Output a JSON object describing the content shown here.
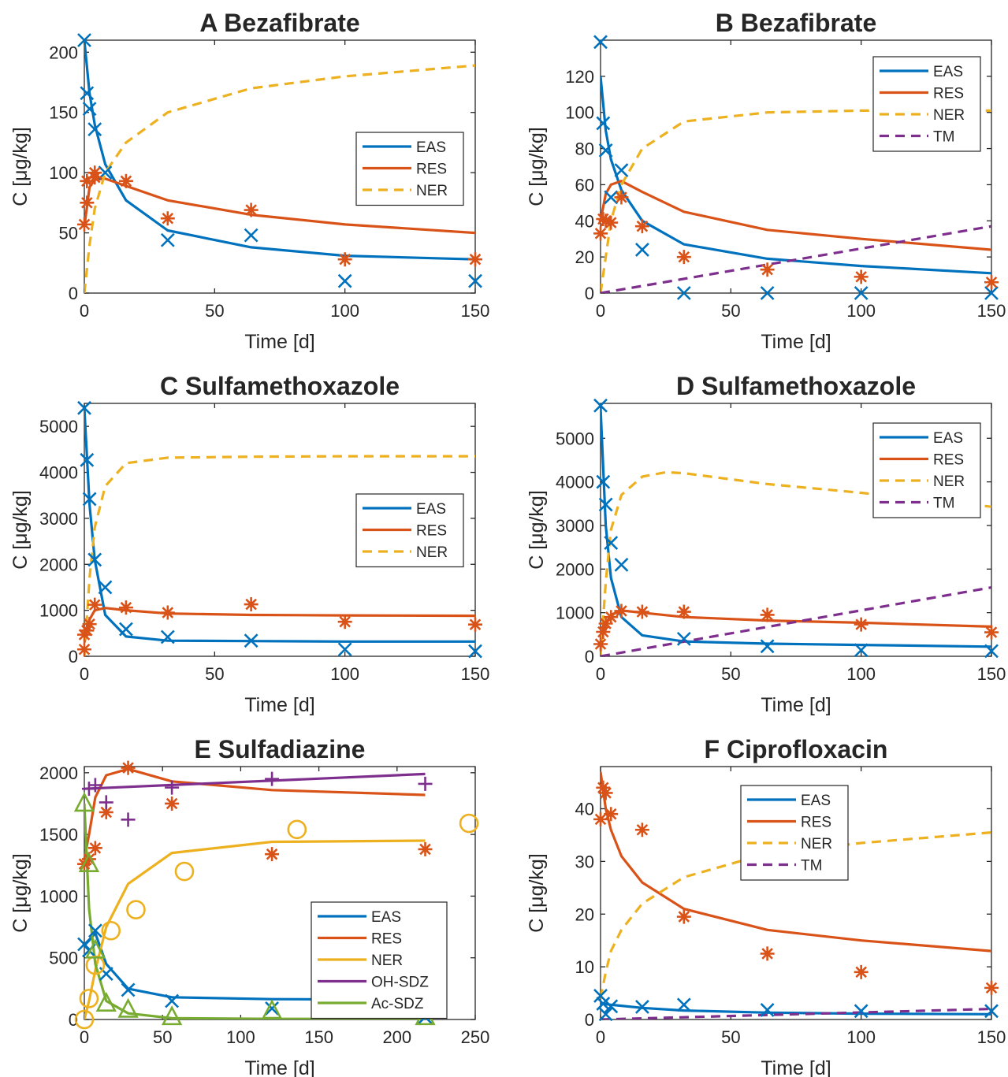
{
  "colors": {
    "EAS": "#0072BD",
    "RES": "#D95319",
    "NER": "#EDB120",
    "TM": "#7E2F8E",
    "OH-SDZ": "#7E2F8E",
    "Ac-SDZ": "#77AC30"
  },
  "chart_data": [
    {
      "type": "line",
      "title": "A Bezafibrate",
      "xlabel": "Time [d]",
      "ylabel": "C [μg/kg]",
      "xlim": [
        0,
        150
      ],
      "ylim": [
        0,
        210
      ],
      "xticks": [
        0,
        50,
        100,
        150
      ],
      "yticks": [
        0,
        50,
        100,
        150,
        200
      ],
      "grid": false,
      "legend_position": "right-middle",
      "series": [
        {
          "name": "EAS",
          "style": "solid",
          "x": [
            0,
            2,
            4,
            8,
            16,
            32,
            64,
            100,
            150
          ],
          "y": [
            210,
            166,
            140,
            107,
            77,
            52,
            38,
            31,
            28
          ]
        },
        {
          "name": "RES",
          "style": "solid",
          "x": [
            0,
            2,
            4,
            8,
            16,
            32,
            64,
            100,
            150
          ],
          "y": [
            55,
            88,
            94,
            95,
            89,
            77,
            65,
            57,
            50
          ]
        },
        {
          "name": "NER",
          "style": "dashed",
          "x": [
            0,
            2,
            4,
            8,
            16,
            32,
            64,
            100,
            150
          ],
          "y": [
            0,
            40,
            70,
            100,
            125,
            150,
            170,
            180,
            189
          ]
        }
      ],
      "markers": [
        {
          "series": "EAS",
          "marker": "x",
          "x": [
            0,
            1,
            2,
            4,
            8,
            32,
            64,
            100,
            150
          ],
          "y": [
            210,
            166,
            153,
            136,
            100,
            44,
            48,
            10,
            10
          ]
        },
        {
          "series": "RES",
          "marker": "*",
          "x": [
            0,
            1,
            1,
            4,
            4,
            16,
            32,
            64,
            100,
            150
          ],
          "y": [
            57,
            75,
            93,
            96,
            100,
            93,
            62,
            69,
            28,
            28
          ]
        }
      ]
    },
    {
      "type": "line",
      "title": "B Bezafibrate",
      "xlabel": "Time [d]",
      "ylabel": "C [μg/kg]",
      "xlim": [
        0,
        150
      ],
      "ylim": [
        0,
        140
      ],
      "xticks": [
        0,
        50,
        100,
        150
      ],
      "yticks": [
        0,
        20,
        40,
        60,
        80,
        100,
        120
      ],
      "grid": false,
      "legend_position": "top-right",
      "series": [
        {
          "name": "EAS",
          "style": "solid",
          "x": [
            0,
            2,
            4,
            8,
            16,
            32,
            64,
            100,
            150
          ],
          "y": [
            120,
            90,
            74,
            57,
            40,
            27,
            19,
            15,
            11
          ]
        },
        {
          "name": "RES",
          "style": "solid",
          "x": [
            0,
            2,
            4,
            8,
            16,
            32,
            64,
            100,
            150
          ],
          "y": [
            40,
            55,
            60,
            62,
            56,
            45,
            35,
            30,
            24
          ]
        },
        {
          "name": "NER",
          "style": "dashed",
          "x": [
            0,
            2,
            4,
            8,
            16,
            32,
            64,
            100,
            150
          ],
          "y": [
            0,
            20,
            40,
            60,
            80,
            95,
            100,
            101,
            101
          ]
        },
        {
          "name": "TM",
          "style": "dashed",
          "x": [
            0,
            150
          ],
          "y": [
            0,
            37
          ]
        }
      ],
      "markers": [
        {
          "series": "EAS",
          "marker": "x",
          "x": [
            0,
            1,
            2,
            4,
            8,
            16,
            32,
            64,
            100,
            150
          ],
          "y": [
            139,
            94,
            79,
            53,
            68,
            24,
            0,
            0,
            0,
            0
          ]
        },
        {
          "series": "RES",
          "marker": "*",
          "x": [
            0,
            1,
            2,
            4,
            8,
            16,
            32,
            64,
            100,
            150
          ],
          "y": [
            33,
            41,
            40,
            39,
            53,
            37,
            20,
            13,
            9,
            6
          ]
        }
      ]
    },
    {
      "type": "line",
      "title": "C Sulfamethoxazole",
      "xlabel": "Time [d]",
      "ylabel": "C [μg/kg]",
      "xlim": [
        0,
        150
      ],
      "ylim": [
        0,
        5500
      ],
      "xticks": [
        0,
        50,
        100,
        150
      ],
      "yticks": [
        0,
        1000,
        2000,
        3000,
        4000,
        5000
      ],
      "grid": false,
      "legend_position": "right-middle",
      "series": [
        {
          "name": "EAS",
          "style": "solid",
          "x": [
            0,
            2,
            4,
            8,
            16,
            32,
            64,
            100,
            150
          ],
          "y": [
            5400,
            3300,
            2100,
            900,
            430,
            340,
            330,
            320,
            320
          ]
        },
        {
          "name": "RES",
          "style": "solid",
          "x": [
            0,
            2,
            4,
            8,
            16,
            32,
            64,
            100,
            150
          ],
          "y": [
            300,
            800,
            1000,
            1050,
            1000,
            930,
            900,
            890,
            880
          ]
        },
        {
          "name": "NER",
          "style": "dashed",
          "x": [
            0,
            2,
            4,
            8,
            16,
            32,
            64,
            100,
            150
          ],
          "y": [
            0,
            1700,
            2800,
            3700,
            4200,
            4320,
            4340,
            4350,
            4350
          ]
        }
      ],
      "markers": [
        {
          "series": "EAS",
          "marker": "x",
          "x": [
            0,
            1,
            2,
            4,
            8,
            16,
            32,
            64,
            100,
            150
          ],
          "y": [
            5400,
            4270,
            3420,
            2100,
            1500,
            590,
            420,
            340,
            150,
            110
          ]
        },
        {
          "series": "RES",
          "marker": "*",
          "x": [
            0,
            0,
            1,
            2,
            4,
            16,
            32,
            64,
            100,
            150
          ],
          "y": [
            150,
            470,
            560,
            700,
            1120,
            1060,
            950,
            1130,
            750,
            690
          ]
        }
      ]
    },
    {
      "type": "line",
      "title": "D Sulfamethoxazole",
      "xlabel": "Time [d]",
      "ylabel": "C [μg/kg]",
      "xlim": [
        0,
        150
      ],
      "ylim": [
        0,
        5800
      ],
      "xticks": [
        0,
        50,
        100,
        150
      ],
      "yticks": [
        0,
        1000,
        2000,
        3000,
        4000,
        5000
      ],
      "grid": false,
      "legend_position": "top-right",
      "series": [
        {
          "name": "EAS",
          "style": "solid",
          "x": [
            0,
            2,
            4,
            8,
            16,
            32,
            64,
            100,
            150
          ],
          "y": [
            5700,
            3000,
            1800,
            900,
            480,
            340,
            290,
            260,
            220
          ]
        },
        {
          "name": "RES",
          "style": "solid",
          "x": [
            0,
            2,
            4,
            8,
            16,
            32,
            64,
            100,
            150
          ],
          "y": [
            300,
            750,
            950,
            1050,
            1000,
            900,
            820,
            770,
            680
          ]
        },
        {
          "name": "NER",
          "style": "dashed",
          "x": [
            0,
            2,
            4,
            8,
            16,
            25,
            32,
            64,
            100,
            150
          ],
          "y": [
            0,
            1700,
            2900,
            3700,
            4120,
            4220,
            4200,
            3950,
            3750,
            3430
          ]
        },
        {
          "name": "TM",
          "style": "dashed",
          "x": [
            0,
            150
          ],
          "y": [
            0,
            1580
          ]
        }
      ],
      "markers": [
        {
          "series": "EAS",
          "marker": "x",
          "x": [
            0,
            1,
            2,
            4,
            8,
            32,
            64,
            100,
            150
          ],
          "y": [
            5750,
            4000,
            3480,
            2600,
            2100,
            400,
            230,
            140,
            120
          ]
        },
        {
          "series": "RES",
          "marker": "*",
          "x": [
            0,
            1,
            2,
            4,
            8,
            16,
            32,
            64,
            100,
            150
          ],
          "y": [
            280,
            560,
            750,
            900,
            1040,
            1020,
            1020,
            950,
            730,
            550
          ]
        }
      ]
    },
    {
      "type": "line",
      "title": "E Sulfadiazine",
      "xlabel": "Time [d]",
      "ylabel": "C [μg/kg]",
      "xlim": [
        0,
        250
      ],
      "ylim": [
        0,
        2050
      ],
      "xticks": [
        0,
        50,
        100,
        150,
        200,
        250
      ],
      "yticks": [
        0,
        500,
        1000,
        1500,
        2000
      ],
      "grid": false,
      "legend_position": "bottom-right",
      "series": [
        {
          "name": "EAS",
          "style": "solid",
          "x": [
            0,
            3,
            7,
            14,
            28,
            56,
            120,
            218
          ],
          "y": [
            600,
            640,
            700,
            450,
            250,
            180,
            165,
            160
          ]
        },
        {
          "name": "RES",
          "style": "solid",
          "x": [
            0,
            3,
            7,
            14,
            28,
            56,
            120,
            218
          ],
          "y": [
            1300,
            1500,
            1800,
            1980,
            2030,
            1930,
            1860,
            1820
          ]
        },
        {
          "name": "NER",
          "style": "solid",
          "x": [
            0,
            3,
            7,
            14,
            28,
            56,
            120,
            218
          ],
          "y": [
            0,
            150,
            400,
            750,
            1100,
            1350,
            1440,
            1450
          ]
        },
        {
          "name": "OH-SDZ",
          "style": "solid",
          "x": [
            0,
            218
          ],
          "y": [
            1870,
            1990
          ]
        },
        {
          "name": "Ac-SDZ",
          "style": "solid",
          "x": [
            0,
            3,
            7,
            14,
            28,
            56,
            120,
            218
          ],
          "y": [
            1750,
            900,
            450,
            150,
            50,
            10,
            5,
            5
          ]
        }
      ],
      "markers": [
        {
          "series": "EAS",
          "marker": "x",
          "x": [
            0,
            3,
            7,
            14,
            28,
            56,
            120,
            218
          ],
          "y": [
            610,
            560,
            720,
            370,
            240,
            150,
            90,
            20
          ]
        },
        {
          "series": "RES",
          "marker": "*",
          "x": [
            0,
            3,
            7,
            14,
            28,
            56,
            120,
            218
          ],
          "y": [
            1260,
            1300,
            1390,
            1680,
            2040,
            1750,
            1340,
            1380
          ]
        },
        {
          "series": "NER",
          "marker": "o",
          "x": [
            0,
            3,
            7,
            17,
            33,
            64,
            136,
            246
          ],
          "y": [
            0,
            170,
            440,
            720,
            890,
            1200,
            1540,
            1590
          ]
        },
        {
          "series": "OH-SDZ",
          "marker": "+",
          "x": [
            3,
            7,
            14,
            28,
            56,
            120,
            218
          ],
          "y": [
            1870,
            1900,
            1760,
            1620,
            1880,
            1950,
            1910
          ]
        },
        {
          "series": "Ac-SDZ",
          "marker": "^",
          "x": [
            0,
            3,
            7,
            14,
            28,
            56,
            120,
            218
          ],
          "y": [
            1750,
            1260,
            560,
            130,
            80,
            20,
            70,
            20
          ]
        }
      ]
    },
    {
      "type": "line",
      "title": "F Ciprofloxacin",
      "xlabel": "Time [d]",
      "ylabel": "C [μg/kg]",
      "xlim": [
        0,
        150
      ],
      "ylim": [
        0,
        48
      ],
      "xticks": [
        0,
        50,
        100,
        150
      ],
      "yticks": [
        0,
        10,
        20,
        30,
        40
      ],
      "grid": false,
      "legend_position": "top-left",
      "series": [
        {
          "name": "EAS",
          "style": "solid",
          "x": [
            0,
            4,
            8,
            16,
            32,
            64,
            100,
            150
          ],
          "y": [
            3,
            2.8,
            2.6,
            2.2,
            1.7,
            1.3,
            1.1,
            1.0
          ]
        },
        {
          "name": "RES",
          "style": "solid",
          "x": [
            0,
            2,
            4,
            8,
            16,
            32,
            64,
            100,
            150
          ],
          "y": [
            47,
            40,
            36,
            31,
            26,
            21,
            17,
            15,
            13
          ]
        },
        {
          "name": "NER",
          "style": "dashed",
          "x": [
            0,
            2,
            4,
            8,
            16,
            32,
            64,
            100,
            150
          ],
          "y": [
            4,
            9,
            13,
            17,
            22,
            27,
            31.5,
            33.5,
            35.5
          ]
        },
        {
          "name": "TM",
          "style": "dashed",
          "x": [
            0,
            150
          ],
          "y": [
            0,
            2
          ]
        }
      ],
      "markers": [
        {
          "series": "EAS",
          "marker": "x",
          "x": [
            0,
            1,
            2,
            4,
            16,
            32,
            64,
            100,
            150
          ],
          "y": [
            4.5,
            3.0,
            1.0,
            2.5,
            2.4,
            2.8,
            1.8,
            1.6,
            1.6
          ]
        },
        {
          "series": "RES",
          "marker": "*",
          "x": [
            0,
            1,
            2,
            4,
            16,
            32,
            64,
            100,
            150
          ],
          "y": [
            38,
            44,
            43,
            39,
            36,
            19.5,
            12.5,
            9,
            6
          ]
        }
      ]
    }
  ]
}
